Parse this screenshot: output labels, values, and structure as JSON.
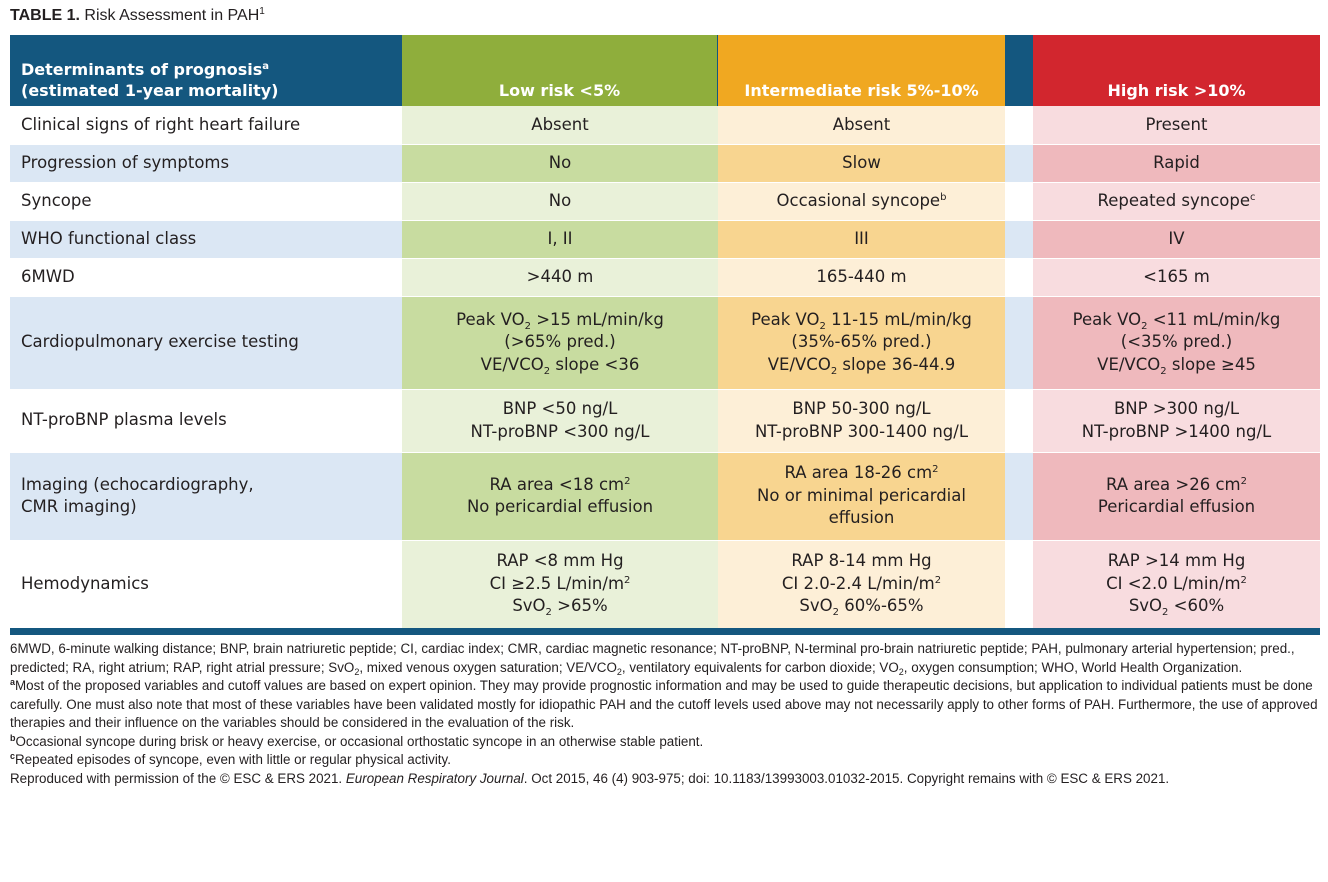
{
  "caption": {
    "label": "TABLE 1.",
    "title": "Risk Assessment in PAH",
    "sup": "1"
  },
  "colors": {
    "header_blue": "#14577f",
    "low_header": "#8fae3c",
    "intermediate_header": "#f0a821",
    "high_header": "#d2262e"
  },
  "headers": {
    "determinants": "Determinants of prognosis",
    "determinants_sup": "a",
    "determinants_line2": "(estimated 1-year mortality)",
    "low": "Low risk <5%",
    "intermediate": "Intermediate risk 5%-10%",
    "high": "High risk >10%"
  },
  "rows": {
    "heart_failure": {
      "label": "Clinical signs of right heart failure",
      "low": "Absent",
      "intermediate": "Absent",
      "high": "Present"
    },
    "progression": {
      "label": "Progression of symptoms",
      "low": "No",
      "intermediate": "Slow",
      "high": "Rapid"
    },
    "syncope": {
      "label": "Syncope",
      "low": "No",
      "intermediate": "Occasional syncope",
      "intermediate_sup": "b",
      "high": "Repeated syncope",
      "high_sup": "c"
    },
    "who_class": {
      "label": "WHO functional class",
      "low": "I, II",
      "intermediate": "III",
      "high": "IV"
    },
    "six_mwd": {
      "label": "6MWD",
      "low": ">440 m",
      "intermediate": "165-440 m",
      "high": "<165 m"
    },
    "cpet": {
      "label": "Cardiopulmonary exercise testing",
      "peak_prefix": "Peak VO",
      "sub2": "2",
      "ve_prefix": "VE/VCO",
      "low_peak": " >15 mL/min/kg",
      "low_pred": "(>65% pred.)",
      "low_ve": " slope <36",
      "int_peak": " 11-15 mL/min/kg",
      "int_pred": "(35%-65% pred.)",
      "int_ve": " slope 36-44.9",
      "high_peak": " <11 mL/min/kg",
      "high_pred": "(<35% pred.)",
      "high_ve": " slope ≥45"
    },
    "ntprobnp": {
      "label": "NT-proBNP plasma levels",
      "low_1": "BNP <50 ng/L",
      "low_2": "NT-proBNP <300 ng/L",
      "int_1": "BNP 50-300 ng/L",
      "int_2": "NT-proBNP 300-1400 ng/L",
      "high_1": "BNP >300 ng/L",
      "high_2": "NT-proBNP >1400 ng/L"
    },
    "imaging": {
      "label_1": "Imaging (echocardiography,",
      "label_2": "CMR imaging)",
      "sup2": "2",
      "low_1": "RA area <18 cm",
      "low_2": "No pericardial effusion",
      "int_1": "RA area 18-26 cm",
      "int_2": "No or minimal pericardial",
      "int_3": "effusion",
      "high_1": "RA area >26 cm",
      "high_2": "Pericardial effusion"
    },
    "hemodynamics": {
      "label": "Hemodynamics",
      "sup2": "2",
      "sub2": "2",
      "low_1": "RAP <8 mm Hg",
      "low_2": "CI ≥2.5 L/min/m",
      "low_3a": "SvO",
      "low_3b": " >65%",
      "int_1": "RAP 8-14 mm Hg",
      "int_2": "CI 2.0-2.4 L/min/m",
      "int_3a": "SvO",
      "int_3b": " 60%-65%",
      "high_1": "RAP >14 mm Hg",
      "high_2": "CI <2.0 L/min/m",
      "high_3a": "SvO",
      "high_3b": " <60%"
    }
  },
  "notes": {
    "abbrev_1": "6MWD, 6-minute walking distance; BNP, brain natriuretic peptide; CI, cardiac index; CMR, cardiac magnetic resonance; NT-proBNP, N-terminal pro-brain natriuretic peptide; PAH, pulmonary arterial hypertension; pred., predicted; RA, right atrium; RAP, right atrial pressure; SvO",
    "abbrev_2": ", mixed venous oxygen saturation; VE/VCO",
    "abbrev_3": ", ventila­tory equivalents for carbon dioxide; VO",
    "abbrev_4": ", oxygen consumption; WHO, World Health Organization.",
    "sub2": "2",
    "footnote_a_sup": "a",
    "footnote_a": "Most of the proposed variables and cutoff values are based on expert opinion. They may provide prognostic information and may be used to guide therapeutic deci­sions, but application to individual patients must be done carefully. One must also note that most of these variables have been validated mostly for idiopathic PAH and the cutoff levels used above may not necessarily apply to other forms of PAH. Furthermore, the use of approved therapies and their influence on the variables should be considered in the evaluation of the risk.",
    "footnote_b_sup": "b",
    "footnote_b": "Occasional syncope during brisk or heavy exercise, or occasional orthostatic syncope in an otherwise stable patient.",
    "footnote_c_sup": "c",
    "footnote_c": "Repeated episodes of syncope, even with little or regular physical activity.",
    "reproduced_1": "Reproduced with permission of the © ESC & ERS 2021. ",
    "reproduced_journal": "European Respiratory Journal",
    "reproduced_2": ". Oct 2015, 46 (4) 903-975; doi: 10.1183/13993003.01032-2015. Copyright remains with © ESC & ERS 2021."
  }
}
